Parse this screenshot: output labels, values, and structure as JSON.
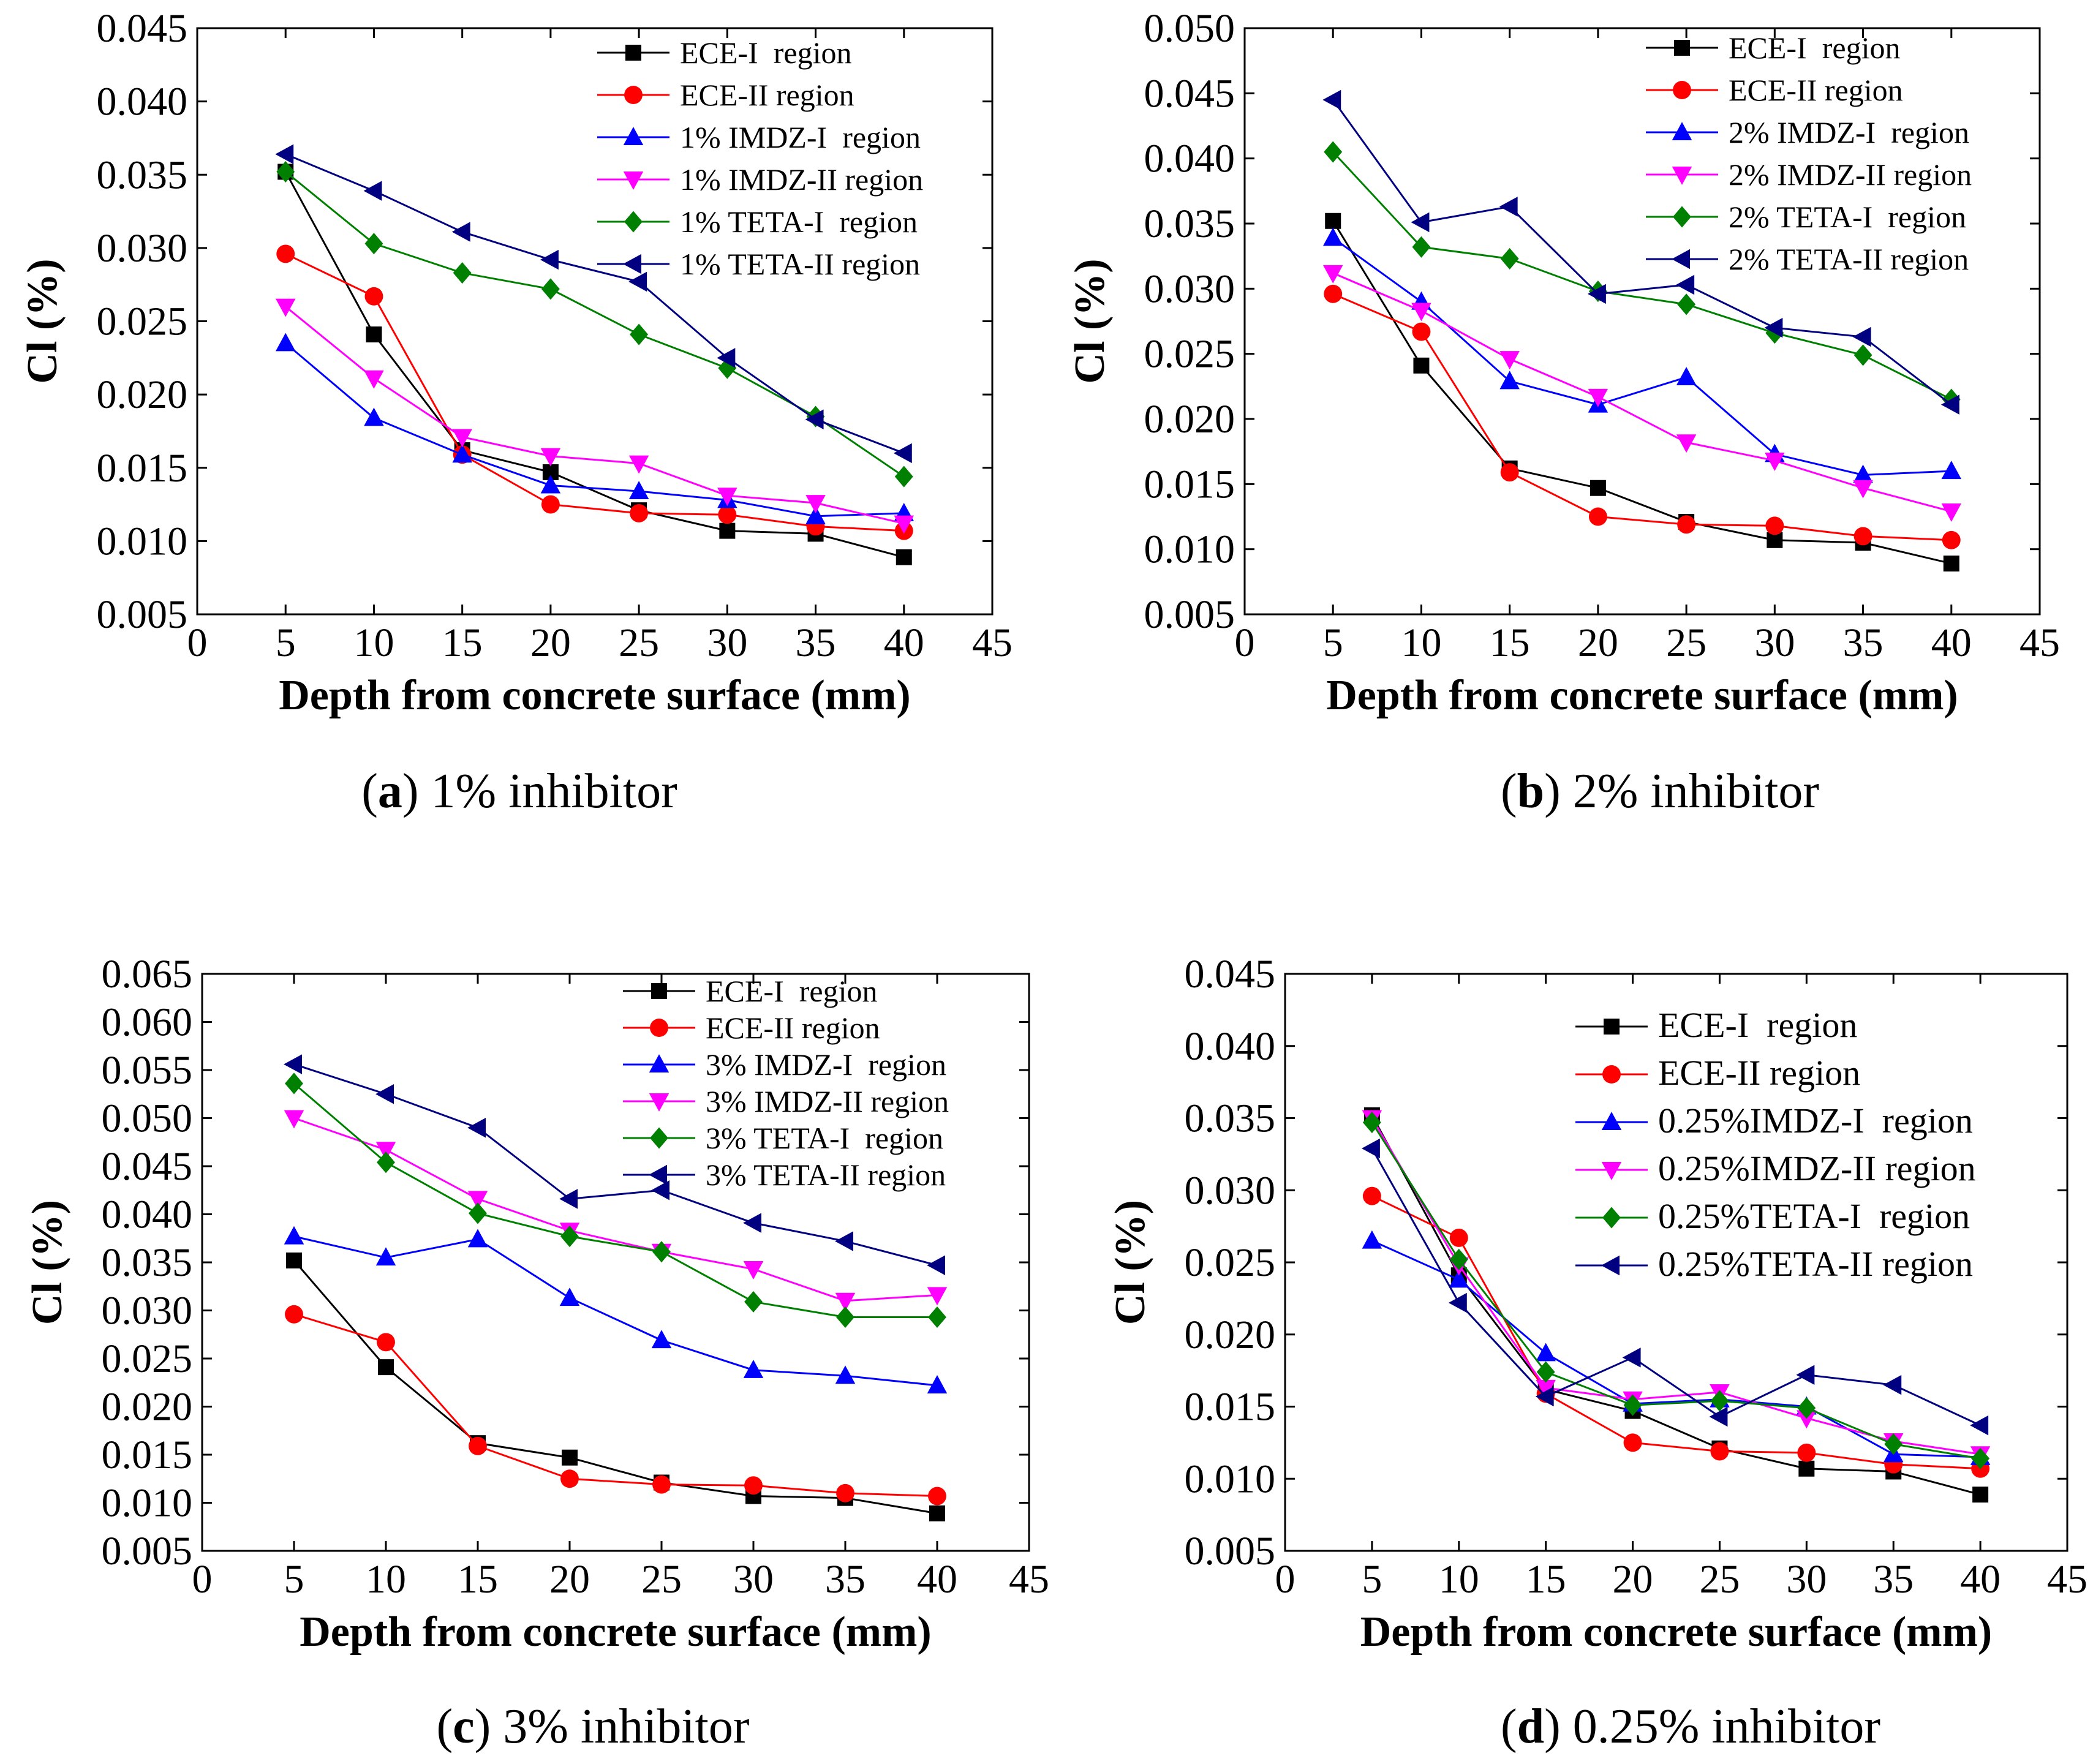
{
  "chart_data": [
    {
      "type": "line",
      "caption": {
        "letter": "a",
        "text": "1% inhibitor"
      },
      "xlabel": "Depth from concrete surface (mm)",
      "ylabel": "Cl (%)",
      "xlim": [
        0,
        45
      ],
      "ylim": [
        0.005,
        0.045
      ],
      "xticks": [
        "0",
        "5",
        "10",
        "15",
        "20",
        "25",
        "30",
        "35",
        "40",
        "45"
      ],
      "yticks": [
        "0.005",
        "0.010",
        "0.015",
        "0.020",
        "0.025",
        "0.030",
        "0.035",
        "0.040",
        "0.045"
      ],
      "x": [
        5,
        10,
        15,
        20,
        25,
        30,
        35,
        40
      ],
      "series": [
        {
          "name": "ECE-I  region",
          "color": "#000000",
          "marker": "square",
          "values": [
            0.0352,
            0.0241,
            0.0162,
            0.0147,
            0.0121,
            0.0107,
            0.0105,
            0.0089
          ]
        },
        {
          "name": "ECE-II region",
          "color": "#ff0000",
          "marker": "circle",
          "values": [
            0.0296,
            0.0267,
            0.0159,
            0.0125,
            0.0119,
            0.0118,
            0.011,
            0.0107
          ]
        },
        {
          "name": "1% IMDZ-I  region",
          "color": "#0000ff",
          "marker": "triangle-up",
          "values": [
            0.0235,
            0.0184,
            0.0159,
            0.0138,
            0.0134,
            0.0128,
            0.0117,
            0.0119
          ]
        },
        {
          "name": "1% IMDZ-II region",
          "color": "#ff00ff",
          "marker": "triangle-down",
          "values": [
            0.026,
            0.0211,
            0.0171,
            0.0158,
            0.0153,
            0.0131,
            0.0126,
            0.0112
          ]
        },
        {
          "name": "1% TETA-I  region",
          "color": "#008000",
          "marker": "diamond",
          "values": [
            0.0352,
            0.0303,
            0.0283,
            0.0272,
            0.0241,
            0.0218,
            0.0185,
            0.0144
          ]
        },
        {
          "name": "1% TETA-II region",
          "color": "#000080",
          "marker": "triangle-left",
          "values": [
            0.0364,
            0.0339,
            0.0311,
            0.0292,
            0.0277,
            0.0225,
            0.0183,
            0.016
          ]
        }
      ]
    },
    {
      "type": "line",
      "caption": {
        "letter": "b",
        "text": "2% inhibitor"
      },
      "xlabel": "Depth from concrete surface (mm)",
      "ylabel": "Cl (%)",
      "xlim": [
        0,
        45
      ],
      "ylim": [
        0.005,
        0.05
      ],
      "xticks": [
        "0",
        "5",
        "10",
        "15",
        "20",
        "25",
        "30",
        "35",
        "40",
        "45"
      ],
      "yticks": [
        "0.005",
        "0.010",
        "0.015",
        "0.020",
        "0.025",
        "0.030",
        "0.035",
        "0.040",
        "0.045",
        "0.050"
      ],
      "x": [
        5,
        10,
        15,
        20,
        25,
        30,
        35,
        40
      ],
      "series": [
        {
          "name": "ECE-I  region",
          "color": "#000000",
          "marker": "square",
          "values": [
            0.0352,
            0.0241,
            0.0162,
            0.0147,
            0.0121,
            0.0107,
            0.0105,
            0.0089
          ]
        },
        {
          "name": "ECE-II region",
          "color": "#ff0000",
          "marker": "circle",
          "values": [
            0.0296,
            0.0267,
            0.0159,
            0.0125,
            0.0119,
            0.0118,
            0.011,
            0.0107
          ]
        },
        {
          "name": "2% IMDZ-I  region",
          "color": "#0000ff",
          "marker": "triangle-up",
          "values": [
            0.0339,
            0.029,
            0.0229,
            0.0211,
            0.0232,
            0.0173,
            0.0157,
            0.016
          ]
        },
        {
          "name": "2% IMDZ-II region",
          "color": "#ff00ff",
          "marker": "triangle-down",
          "values": [
            0.0312,
            0.0283,
            0.0246,
            0.0217,
            0.0182,
            0.0168,
            0.0147,
            0.0129
          ]
        },
        {
          "name": "2% TETA-I  region",
          "color": "#008000",
          "marker": "diamond",
          "values": [
            0.0405,
            0.0332,
            0.0323,
            0.0298,
            0.0288,
            0.0266,
            0.0249,
            0.0215
          ]
        },
        {
          "name": "2% TETA-II region",
          "color": "#000080",
          "marker": "triangle-left",
          "values": [
            0.0445,
            0.0351,
            0.0363,
            0.0296,
            0.0303,
            0.027,
            0.0263,
            0.0211
          ]
        }
      ]
    },
    {
      "type": "line",
      "caption": {
        "letter": "c",
        "text": "3% inhibitor"
      },
      "xlabel": "Depth from concrete surface (mm)",
      "ylabel": "Cl (%)",
      "xlim": [
        0,
        45
      ],
      "ylim": [
        0.005,
        0.065
      ],
      "xticks": [
        "0",
        "5",
        "10",
        "15",
        "20",
        "25",
        "30",
        "35",
        "40",
        "45"
      ],
      "yticks": [
        "0.005",
        "0.010",
        "0.015",
        "0.020",
        "0.025",
        "0.030",
        "0.035",
        "0.040",
        "0.045",
        "0.050",
        "0.055",
        "0.060",
        "0.065"
      ],
      "x": [
        5,
        10,
        15,
        20,
        25,
        30,
        35,
        40
      ],
      "series": [
        {
          "name": "ECE-I  region",
          "color": "#000000",
          "marker": "square",
          "values": [
            0.0352,
            0.0241,
            0.0162,
            0.0147,
            0.0121,
            0.0107,
            0.0105,
            0.0089
          ]
        },
        {
          "name": "ECE-II region",
          "color": "#ff0000",
          "marker": "circle",
          "values": [
            0.0296,
            0.0267,
            0.0159,
            0.0125,
            0.0119,
            0.0118,
            0.011,
            0.0107
          ]
        },
        {
          "name": "3% IMDZ-I  region",
          "color": "#0000ff",
          "marker": "triangle-up",
          "values": [
            0.0377,
            0.0355,
            0.0374,
            0.0313,
            0.0269,
            0.0238,
            0.0232,
            0.0222
          ]
        },
        {
          "name": "3% IMDZ-II region",
          "color": "#ff00ff",
          "marker": "triangle-down",
          "values": [
            0.05,
            0.0467,
            0.0416,
            0.0383,
            0.0361,
            0.0343,
            0.031,
            0.0316
          ]
        },
        {
          "name": "3% TETA-I  region",
          "color": "#008000",
          "marker": "diamond",
          "values": [
            0.0536,
            0.0454,
            0.0401,
            0.0377,
            0.0361,
            0.0309,
            0.0293,
            0.0293
          ]
        },
        {
          "name": "3% TETA-II region",
          "color": "#000080",
          "marker": "triangle-left",
          "values": [
            0.0556,
            0.0525,
            0.049,
            0.0416,
            0.0425,
            0.0391,
            0.0372,
            0.0347
          ]
        }
      ]
    },
    {
      "type": "line",
      "caption": {
        "letter": "d",
        "text": "0.25% inhibitor"
      },
      "xlabel": "Depth from concrete surface (mm)",
      "ylabel": "Cl (%)",
      "xlim": [
        0,
        45
      ],
      "ylim": [
        0.005,
        0.045
      ],
      "xticks": [
        "0",
        "5",
        "10",
        "15",
        "20",
        "25",
        "30",
        "35",
        "40",
        "45"
      ],
      "yticks": [
        "0.005",
        "0.010",
        "0.015",
        "0.020",
        "0.025",
        "0.030",
        "0.035",
        "0.040",
        "0.045"
      ],
      "x": [
        5,
        10,
        15,
        20,
        25,
        30,
        35,
        40
      ],
      "series": [
        {
          "name": "ECE-I  region",
          "color": "#000000",
          "marker": "square",
          "values": [
            0.0352,
            0.0241,
            0.0162,
            0.0147,
            0.0121,
            0.0107,
            0.0105,
            0.0089
          ]
        },
        {
          "name": "ECE-II region",
          "color": "#ff0000",
          "marker": "circle",
          "values": [
            0.0296,
            0.0267,
            0.0159,
            0.0125,
            0.0119,
            0.0118,
            0.011,
            0.0107
          ]
        },
        {
          "name": "0.25%IMDZ-I  region",
          "color": "#0000ff",
          "marker": "triangle-up",
          "values": [
            0.0265,
            0.0238,
            0.0187,
            0.0152,
            0.0155,
            0.015,
            0.0117,
            0.0115
          ]
        },
        {
          "name": "0.25%IMDZ-II region",
          "color": "#ff00ff",
          "marker": "triangle-down",
          "values": [
            0.035,
            0.0248,
            0.0163,
            0.0155,
            0.016,
            0.0142,
            0.0126,
            0.0117
          ]
        },
        {
          "name": "0.25%TETA-I  region",
          "color": "#008000",
          "marker": "diamond",
          "values": [
            0.0347,
            0.0252,
            0.0174,
            0.0151,
            0.0154,
            0.0149,
            0.0124,
            0.0114
          ]
        },
        {
          "name": "0.25%TETA-II region",
          "color": "#000080",
          "marker": "triangle-left",
          "values": [
            0.0329,
            0.0222,
            0.0157,
            0.0184,
            0.0143,
            0.0172,
            0.0165,
            0.0137
          ]
        }
      ]
    }
  ]
}
